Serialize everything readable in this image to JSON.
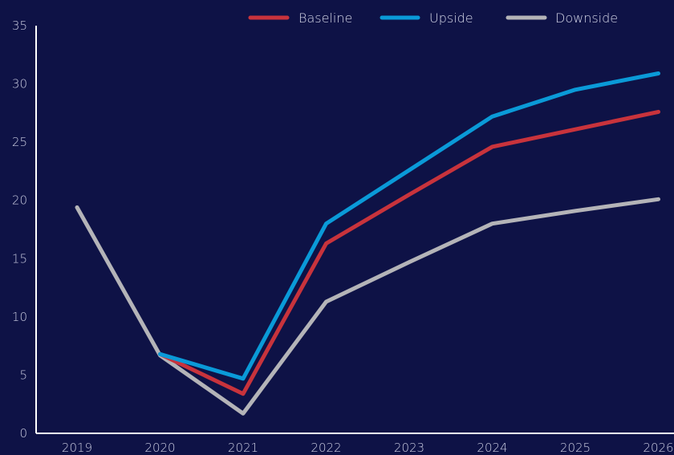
{
  "colors": {
    "background": "#0e1246",
    "axis": "#ffffff",
    "tick_text": "#c9cbe0"
  },
  "chart_data": {
    "type": "line",
    "title": "",
    "xlabel": "",
    "ylabel": "",
    "categories": [
      "2019",
      "2020",
      "2021",
      "2022",
      "2023",
      "2024",
      "2025",
      "2026"
    ],
    "ylim": [
      0,
      35
    ],
    "yticks": [
      "0",
      "5",
      "10",
      "15",
      "20",
      "25",
      "30",
      "35"
    ],
    "grid": false,
    "legend_position": "top-right",
    "series": [
      {
        "name": "Baseline",
        "color": "#c8333c",
        "values": [
          null,
          6.8,
          3.4,
          16.3,
          20.5,
          24.6,
          26.1,
          27.6
        ]
      },
      {
        "name": "Upside",
        "color": "#0a9ad8",
        "values": [
          null,
          6.8,
          4.7,
          18.0,
          22.6,
          27.2,
          29.5,
          30.9
        ]
      },
      {
        "name": "Downside",
        "color": "#b4b4b8",
        "values": [
          19.4,
          6.7,
          1.7,
          11.3,
          14.7,
          18.0,
          19.1,
          20.1
        ]
      }
    ]
  }
}
